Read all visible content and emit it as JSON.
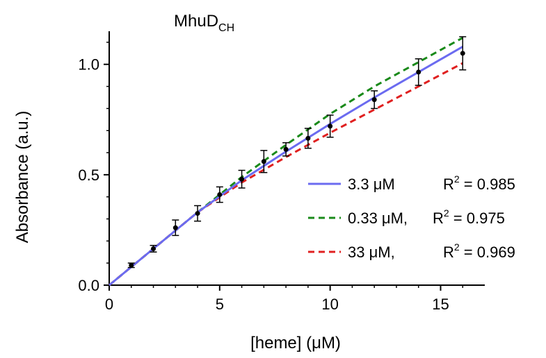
{
  "chart_data": {
    "type": "scatter",
    "title": "MhuD",
    "title_subscript": "CH",
    "xlabel": "[heme] (μM)",
    "ylabel": "Absorbance (a.u.)",
    "xlim": [
      0,
      17
    ],
    "ylim": [
      0,
      1.15
    ],
    "x_ticks": [
      0,
      5,
      10,
      15
    ],
    "x_tick_labels": [
      "0",
      "5",
      "10",
      "15"
    ],
    "y_ticks": [
      0,
      0.5,
      1.0
    ],
    "y_tick_labels": [
      "0.0",
      "0.5",
      "1.0"
    ],
    "grid": false,
    "legend_position": "bottom-right",
    "points": {
      "x": [
        1,
        2,
        3,
        4,
        5,
        6,
        7,
        8,
        9,
        10,
        12,
        14,
        16
      ],
      "y": [
        0.09,
        0.165,
        0.26,
        0.325,
        0.41,
        0.48,
        0.56,
        0.615,
        0.665,
        0.72,
        0.84,
        0.965,
        1.05
      ],
      "err": [
        0.01,
        0.015,
        0.035,
        0.035,
        0.035,
        0.04,
        0.05,
        0.03,
        0.045,
        0.05,
        0.04,
        0.06,
        0.075
      ]
    },
    "series": [
      {
        "name": "3.3 μM",
        "r2_label": "R",
        "r2_sup": "2",
        "r2_value": " = 0.985",
        "style": "solid",
        "color": "#6b6bf0",
        "x": [
          0,
          2,
          4,
          6,
          8,
          10,
          12,
          14,
          16
        ],
        "y": [
          0,
          0.165,
          0.33,
          0.475,
          0.605,
          0.73,
          0.85,
          0.965,
          1.08
        ]
      },
      {
        "name": "0.33 μM,",
        "r2_label": "R",
        "r2_sup": "2",
        "r2_value": " = 0.975",
        "style": "dashed",
        "color": "#1a8a1a",
        "x": [
          0,
          2,
          4,
          6,
          8,
          10,
          12,
          14,
          16
        ],
        "y": [
          0,
          0.165,
          0.33,
          0.49,
          0.635,
          0.775,
          0.9,
          1.01,
          1.12
        ]
      },
      {
        "name": "33 μM,",
        "r2_label": "R",
        "r2_sup": "2",
        "r2_value": " = 0.969",
        "style": "dashed",
        "color": "#e02020",
        "x": [
          0,
          2,
          4,
          6,
          8,
          10,
          12,
          14,
          16
        ],
        "y": [
          0,
          0.165,
          0.33,
          0.465,
          0.58,
          0.69,
          0.795,
          0.9,
          1.005
        ]
      }
    ]
  }
}
